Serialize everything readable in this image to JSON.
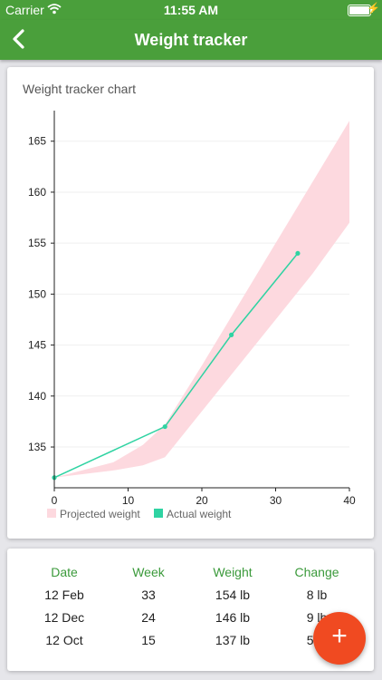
{
  "status": {
    "carrier": "Carrier",
    "time": "11:55 AM"
  },
  "nav": {
    "title": "Weight tracker"
  },
  "chart_card": {
    "title": "Weight tracker chart"
  },
  "chart_data": {
    "type": "line",
    "xlim": [
      0,
      40
    ],
    "ylim": [
      131,
      168
    ],
    "x_ticks": [
      0,
      10,
      20,
      30,
      40
    ],
    "y_ticks": [
      135,
      140,
      145,
      150,
      155,
      160,
      165
    ],
    "grid": true,
    "legend": "bottom",
    "series": [
      {
        "name": "Projected weight",
        "kind": "band",
        "color": "#fdd9df",
        "x": [
          0,
          8,
          12,
          15,
          20,
          25,
          30,
          35,
          40
        ],
        "lower": [
          132,
          132.7,
          133.2,
          134,
          138.5,
          143,
          147.5,
          152,
          157
        ],
        "upper": [
          132,
          133.5,
          135.2,
          137.2,
          143,
          149,
          155,
          161,
          167
        ]
      },
      {
        "name": "Actual weight",
        "kind": "line",
        "color": "#2fd3a2",
        "x": [
          0,
          15,
          24,
          33
        ],
        "y": [
          132,
          137,
          146,
          154
        ]
      }
    ]
  },
  "table": {
    "headers": [
      "Date",
      "Week",
      "Weight",
      "Change"
    ],
    "rows": [
      [
        "12 Feb",
        "33",
        "154 lb",
        "8 lb"
      ],
      [
        "12 Dec",
        "24",
        "146 lb",
        "9 lb"
      ],
      [
        "12 Oct",
        "15",
        "137 lb",
        "5 lb"
      ]
    ]
  },
  "fab": {
    "label": "+"
  }
}
